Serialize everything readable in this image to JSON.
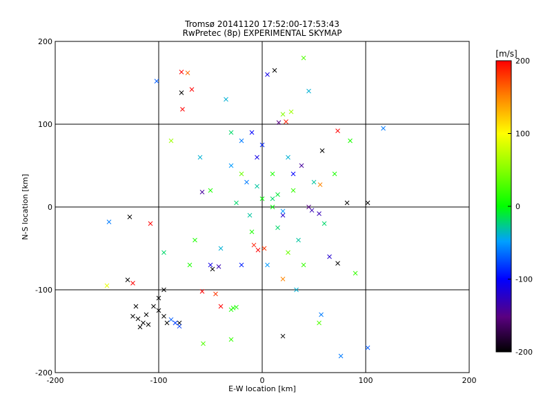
{
  "chart_data": {
    "type": "scatter",
    "title_line1": "Tromsø 20141120 17:52:00-17:53:43",
    "title_line2": "RwPretec (8p) EXPERIMENTAL SKYMAP",
    "xlabel": "E-W location [km]",
    "ylabel": "N-S location [km]",
    "xlim": [
      -200,
      200
    ],
    "ylim": [
      -200,
      200
    ],
    "x_ticks": [
      "-200",
      "-100",
      "0",
      "100",
      "200"
    ],
    "y_ticks": [
      "-200",
      "-100",
      "0",
      "100",
      "200"
    ],
    "grid": true,
    "colorbar": {
      "label": "[m/s]",
      "range": [
        -200,
        200
      ],
      "ticks": [
        "200",
        "100",
        "0",
        "-100",
        "-200"
      ]
    },
    "marker_types": [
      "dot (small echo)",
      "cross (large echo)"
    ],
    "points": [
      {
        "x": -120,
        "y": -135,
        "v": -200,
        "m": "x"
      },
      {
        "x": -115,
        "y": -140,
        "v": -200,
        "m": "x"
      },
      {
        "x": -112,
        "y": -130,
        "v": -200,
        "m": "x"
      },
      {
        "x": -118,
        "y": -145,
        "v": -200,
        "m": "x"
      },
      {
        "x": -105,
        "y": -120,
        "v": -200,
        "m": "x"
      },
      {
        "x": -125,
        "y": -132,
        "v": -200,
        "m": "x"
      },
      {
        "x": -100,
        "y": -110,
        "v": -200,
        "m": "x"
      },
      {
        "x": -95,
        "y": -132,
        "v": -200,
        "m": "x"
      },
      {
        "x": -110,
        "y": -142,
        "v": -200,
        "m": "x"
      },
      {
        "x": -122,
        "y": -120,
        "v": -200,
        "m": "x"
      },
      {
        "x": -92,
        "y": -140,
        "v": -200,
        "m": "x"
      },
      {
        "x": -130,
        "y": -88,
        "v": -200,
        "m": "x"
      },
      {
        "x": -128,
        "y": -12,
        "v": -200,
        "m": "x"
      },
      {
        "x": 20,
        "y": -156,
        "v": -200,
        "m": "x"
      },
      {
        "x": 102,
        "y": 5,
        "v": -200,
        "m": "x"
      },
      {
        "x": 12,
        "y": 165,
        "v": -200,
        "m": "x"
      },
      {
        "x": -78,
        "y": 138,
        "v": -200,
        "m": "x"
      },
      {
        "x": 58,
        "y": 68,
        "v": -200,
        "m": "x"
      },
      {
        "x": 73,
        "y": -68,
        "v": -200,
        "m": "x"
      },
      {
        "x": -48,
        "y": -75,
        "v": -200,
        "m": "x"
      },
      {
        "x": -95,
        "y": -100,
        "v": -200,
        "m": "x"
      },
      {
        "x": 82,
        "y": 5,
        "v": -200,
        "m": "x"
      },
      {
        "x": -80,
        "y": -140,
        "v": -200,
        "m": "x"
      },
      {
        "x": -100,
        "y": -125,
        "v": -200,
        "m": "x"
      },
      {
        "x": 45,
        "y": 0,
        "v": -150,
        "m": "x"
      },
      {
        "x": 16,
        "y": 102,
        "v": -150,
        "m": "x"
      },
      {
        "x": -58,
        "y": 18,
        "v": -140,
        "m": "x"
      },
      {
        "x": 38,
        "y": 50,
        "v": -140,
        "m": "x"
      },
      {
        "x": 48,
        "y": -4,
        "v": -130,
        "m": "x"
      },
      {
        "x": -42,
        "y": -72,
        "v": -130,
        "m": "x"
      },
      {
        "x": 55,
        "y": -8,
        "v": -130,
        "m": "x"
      },
      {
        "x": 20,
        "y": -10,
        "v": -120,
        "m": "x"
      },
      {
        "x": 102,
        "y": -170,
        "v": -70,
        "m": "x"
      },
      {
        "x": 76,
        "y": -180,
        "v": -60,
        "m": "x"
      },
      {
        "x": 117,
        "y": 95,
        "v": -60,
        "m": "x"
      },
      {
        "x": -102,
        "y": 152,
        "v": -70,
        "m": "x"
      },
      {
        "x": 57,
        "y": -130,
        "v": -60,
        "m": "x"
      },
      {
        "x": -148,
        "y": -18,
        "v": -60,
        "m": "x"
      },
      {
        "x": -77,
        "y": 118,
        "v": 200,
        "m": "x"
      },
      {
        "x": -78,
        "y": 163,
        "v": 200,
        "m": "x"
      },
      {
        "x": -68,
        "y": 142,
        "v": 200,
        "m": "x"
      },
      {
        "x": -108,
        "y": -20,
        "v": 200,
        "m": "x"
      },
      {
        "x": -58,
        "y": -102,
        "v": 200,
        "m": "x"
      },
      {
        "x": 73,
        "y": 92,
        "v": 200,
        "m": "x"
      },
      {
        "x": 23,
        "y": 103,
        "v": 190,
        "m": "x"
      },
      {
        "x": -4,
        "y": -52,
        "v": 200,
        "m": "x"
      },
      {
        "x": -8,
        "y": -46,
        "v": 190,
        "m": "x"
      },
      {
        "x": 2,
        "y": -50,
        "v": 180,
        "m": "x"
      },
      {
        "x": 20,
        "y": -87,
        "v": 150,
        "m": "x"
      },
      {
        "x": -45,
        "y": -105,
        "v": 180,
        "m": "x"
      },
      {
        "x": -40,
        "y": -120,
        "v": 200,
        "m": "x"
      },
      {
        "x": -125,
        "y": -92,
        "v": 200,
        "m": "x"
      },
      {
        "x": 56,
        "y": 27,
        "v": 150,
        "m": "x"
      },
      {
        "x": -72,
        "y": 162,
        "v": 160,
        "m": "x"
      },
      {
        "x": -88,
        "y": 80,
        "v": 60,
        "m": "x"
      },
      {
        "x": 28,
        "y": 115,
        "v": 60,
        "m": "x"
      },
      {
        "x": -57,
        "y": -165,
        "v": 30,
        "m": "x"
      },
      {
        "x": -20,
        "y": 40,
        "v": 40,
        "m": "x"
      },
      {
        "x": 20,
        "y": 112,
        "v": 50,
        "m": "x"
      },
      {
        "x": -80,
        "y": -144,
        "v": -80,
        "m": "x"
      },
      {
        "x": -84,
        "y": -140,
        "v": -80,
        "m": "x"
      },
      {
        "x": -88,
        "y": -136,
        "v": -70,
        "m": "x"
      },
      {
        "x": -28,
        "y": -122,
        "v": 10,
        "m": "x"
      },
      {
        "x": -30,
        "y": -124,
        "v": 10,
        "m": "x"
      },
      {
        "x": -25,
        "y": -121,
        "v": 10,
        "m": "x"
      },
      {
        "x": -150,
        "y": -95,
        "v": 90,
        "m": "x"
      },
      {
        "x": 33,
        "y": -100,
        "v": -40,
        "m": "x"
      },
      {
        "x": -5,
        "y": 25,
        "v": -30,
        "m": "x"
      },
      {
        "x": 10,
        "y": 10,
        "v": -20,
        "m": "x"
      },
      {
        "x": -12,
        "y": -10,
        "v": -30,
        "m": "x"
      },
      {
        "x": 25,
        "y": 60,
        "v": -40,
        "m": "x"
      },
      {
        "x": -30,
        "y": 50,
        "v": -50,
        "m": "x"
      },
      {
        "x": 0,
        "y": 75,
        "v": -90,
        "m": "x"
      },
      {
        "x": -20,
        "y": 80,
        "v": -60,
        "m": "x"
      },
      {
        "x": 35,
        "y": -40,
        "v": -30,
        "m": "x"
      },
      {
        "x": -40,
        "y": -50,
        "v": -40,
        "m": "x"
      },
      {
        "x": 15,
        "y": -25,
        "v": -20,
        "m": "x"
      },
      {
        "x": -60,
        "y": 60,
        "v": -40,
        "m": "x"
      },
      {
        "x": 50,
        "y": 30,
        "v": -30,
        "m": "x"
      },
      {
        "x": 60,
        "y": -20,
        "v": -20,
        "m": "x"
      },
      {
        "x": -25,
        "y": 5,
        "v": -20,
        "m": "x"
      },
      {
        "x": 5,
        "y": -70,
        "v": -50,
        "m": "x"
      },
      {
        "x": -35,
        "y": 130,
        "v": -40,
        "m": "x"
      },
      {
        "x": 45,
        "y": 140,
        "v": -40,
        "m": "x"
      },
      {
        "x": -50,
        "y": 20,
        "v": 10,
        "m": "x"
      },
      {
        "x": 30,
        "y": 20,
        "v": 20,
        "m": "x"
      },
      {
        "x": 10,
        "y": 40,
        "v": 10,
        "m": "x"
      },
      {
        "x": -10,
        "y": -30,
        "v": 10,
        "m": "x"
      },
      {
        "x": 40,
        "y": -70,
        "v": 20,
        "m": "x"
      },
      {
        "x": -65,
        "y": -40,
        "v": 10,
        "m": "x"
      },
      {
        "x": 70,
        "y": 40,
        "v": 10,
        "m": "x"
      },
      {
        "x": 25,
        "y": -55,
        "v": 40,
        "m": "x"
      },
      {
        "x": 10,
        "y": 0,
        "v": 0,
        "m": "x"
      },
      {
        "x": 0,
        "y": 10,
        "v": 0,
        "m": "x"
      },
      {
        "x": 15,
        "y": 15,
        "v": -10,
        "m": "x"
      },
      {
        "x": -15,
        "y": 30,
        "v": -60,
        "m": "x"
      },
      {
        "x": 20,
        "y": -5,
        "v": -50,
        "m": "x"
      },
      {
        "x": -5,
        "y": 60,
        "v": -110,
        "m": "x"
      },
      {
        "x": 30,
        "y": 40,
        "v": -100,
        "m": "x"
      },
      {
        "x": -20,
        "y": -70,
        "v": -90,
        "m": "x"
      },
      {
        "x": -50,
        "y": -70,
        "v": -110,
        "m": "x"
      },
      {
        "x": 65,
        "y": -60,
        "v": -120,
        "m": "x"
      },
      {
        "x": -10,
        "y": 90,
        "v": -100,
        "m": "x"
      },
      {
        "x": 5,
        "y": 160,
        "v": -110,
        "m": "x"
      },
      {
        "x": -30,
        "y": -160,
        "v": 20,
        "m": "x"
      },
      {
        "x": 55,
        "y": -140,
        "v": 30,
        "m": "x"
      },
      {
        "x": 85,
        "y": 80,
        "v": 10,
        "m": "x"
      },
      {
        "x": -95,
        "y": -55,
        "v": -20,
        "m": "x"
      },
      {
        "x": 90,
        "y": -80,
        "v": 20,
        "m": "x"
      },
      {
        "x": -30,
        "y": 90,
        "v": -20,
        "m": "x"
      },
      {
        "x": 40,
        "y": 180,
        "v": 30,
        "m": "x"
      },
      {
        "x": -70,
        "y": -70,
        "v": 10,
        "m": "x"
      }
    ]
  }
}
